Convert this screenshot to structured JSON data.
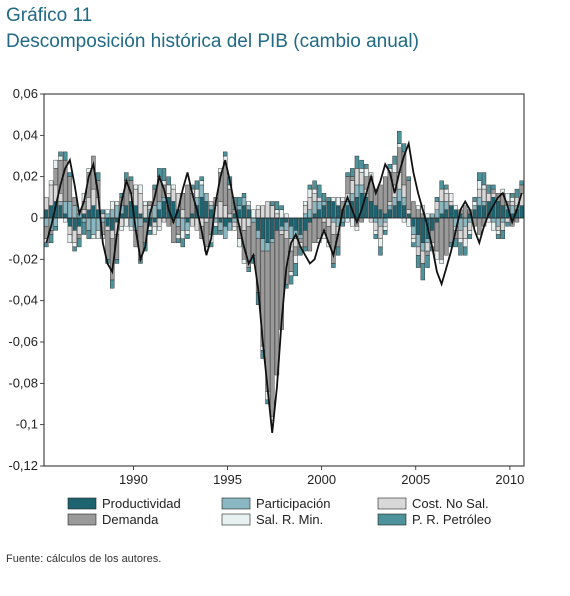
{
  "header": {
    "label": "Gráfico 11",
    "title": "Descomposición histórica del PIB (cambio anual)"
  },
  "source": "Fuente: cálculos de los autores.",
  "chart_data": {
    "type": "bar",
    "stacked": true,
    "x_tick_labels": [
      "1990",
      "1995",
      "2000",
      "2005",
      "2010"
    ],
    "y_tick_labels": [
      "0,06",
      "0,04",
      "0,02",
      "0",
      "-0,02",
      "-0,04",
      "-0,06",
      "-0,08",
      "-0,1",
      "-0,12"
    ],
    "ylim": [
      -0.12,
      0.06
    ],
    "xlim": [
      1985.25,
      2010.75
    ],
    "grid": false,
    "legend_position": "bottom",
    "series": [
      {
        "name": "Productividad",
        "color": "#1e6470",
        "values": [
          0.004,
          0.006,
          0.008,
          0.006,
          0.002,
          -0.004,
          -0.006,
          -0.004,
          0.002,
          0.004,
          0.006,
          0.004,
          0.0,
          -0.004,
          -0.006,
          -0.002,
          0.002,
          0.006,
          0.008,
          0.006,
          0.002,
          -0.002,
          -0.004,
          -0.002,
          0.004,
          0.008,
          0.01,
          0.008,
          0.004,
          0.0,
          -0.002,
          0.002,
          0.006,
          0.01,
          0.008,
          0.004,
          0.0,
          -0.002,
          -0.004,
          -0.002,
          0.002,
          0.004,
          0.006,
          0.004,
          0.0,
          -0.006,
          -0.01,
          -0.012,
          -0.01,
          -0.006,
          -0.004,
          -0.002,
          -0.004,
          -0.006,
          -0.008,
          -0.006,
          -0.002,
          0.002,
          0.004,
          0.006,
          0.008,
          0.008,
          0.006,
          0.004,
          0.006,
          0.008,
          0.01,
          0.012,
          0.01,
          0.008,
          0.006,
          0.004,
          0.002,
          0.004,
          0.006,
          0.008,
          0.006,
          0.002,
          -0.004,
          -0.008,
          -0.012,
          -0.01,
          -0.006,
          -0.002,
          0.002,
          0.004,
          0.006,
          0.004,
          0.002,
          0.0,
          0.002,
          0.004,
          0.006,
          0.006,
          0.008,
          0.01,
          0.008,
          0.006,
          0.004,
          0.002,
          0.004,
          0.006
        ]
      },
      {
        "name": "Participación",
        "color": "#8ab8c2",
        "values": [
          -0.004,
          -0.006,
          -0.004,
          0.002,
          0.006,
          0.008,
          0.006,
          0.002,
          -0.002,
          -0.006,
          -0.008,
          -0.006,
          -0.002,
          0.002,
          0.004,
          0.006,
          0.004,
          0.0,
          -0.004,
          -0.006,
          -0.004,
          0.0,
          0.004,
          0.006,
          0.004,
          0.002,
          0.0,
          -0.002,
          -0.004,
          -0.006,
          -0.004,
          0.0,
          0.004,
          0.006,
          0.004,
          0.002,
          -0.002,
          -0.004,
          -0.006,
          -0.004,
          -0.002,
          0.002,
          0.004,
          0.002,
          -0.002,
          -0.004,
          -0.006,
          -0.004,
          -0.002,
          0.0,
          -0.002,
          -0.004,
          -0.006,
          -0.004,
          -0.002,
          0.002,
          0.004,
          0.006,
          0.004,
          0.002,
          0.0,
          -0.002,
          -0.004,
          -0.002,
          0.002,
          0.004,
          0.006,
          0.004,
          0.002,
          0.0,
          -0.002,
          -0.004,
          -0.002,
          0.002,
          0.004,
          0.006,
          0.004,
          0.0,
          -0.004,
          -0.006,
          -0.004,
          -0.002,
          0.002,
          0.004,
          0.006,
          0.004,
          0.0,
          -0.004,
          -0.006,
          -0.004,
          -0.002,
          0.002,
          0.004,
          0.002,
          0.0,
          -0.002,
          -0.004,
          -0.002,
          0.002,
          0.004,
          0.002,
          0.0
        ]
      },
      {
        "name": "Cost. No Sal.",
        "color": "#d8d8d8",
        "values": [
          0.006,
          0.01,
          0.008,
          0.004,
          0.0,
          -0.004,
          -0.006,
          -0.004,
          0.002,
          0.006,
          0.008,
          0.006,
          0.002,
          -0.002,
          -0.004,
          -0.006,
          -0.004,
          0.0,
          0.004,
          0.008,
          0.01,
          0.006,
          0.002,
          -0.002,
          -0.004,
          -0.002,
          0.002,
          0.006,
          0.008,
          0.004,
          0.0,
          -0.004,
          -0.006,
          -0.004,
          -0.002,
          0.002,
          0.006,
          0.008,
          0.006,
          0.002,
          -0.002,
          -0.004,
          -0.006,
          -0.004,
          0.0,
          0.004,
          0.006,
          0.008,
          0.006,
          0.002,
          -0.002,
          -0.004,
          -0.006,
          -0.004,
          0.0,
          0.004,
          0.006,
          0.004,
          0.002,
          -0.002,
          -0.004,
          -0.006,
          -0.004,
          0.0,
          0.004,
          0.006,
          0.008,
          0.006,
          0.002,
          -0.002,
          -0.004,
          -0.006,
          -0.002,
          0.002,
          0.006,
          0.008,
          0.006,
          0.002,
          -0.002,
          -0.004,
          -0.006,
          -0.004,
          0.0,
          0.004,
          0.006,
          0.004,
          0.002,
          -0.002,
          -0.004,
          -0.006,
          -0.004,
          0.0,
          0.004,
          0.006,
          0.004,
          0.002,
          -0.002,
          -0.004,
          -0.002,
          0.002,
          0.004,
          0.006
        ]
      },
      {
        "name": "Demanda",
        "color": "#9a9a9a",
        "values": [
          -0.006,
          -0.002,
          0.008,
          0.016,
          0.02,
          0.012,
          0.004,
          -0.002,
          0.004,
          0.012,
          0.016,
          0.008,
          -0.006,
          -0.014,
          -0.02,
          -0.012,
          0.004,
          0.012,
          0.006,
          -0.008,
          -0.016,
          -0.01,
          0.002,
          0.008,
          0.012,
          0.006,
          -0.004,
          -0.01,
          -0.004,
          0.008,
          0.016,
          0.01,
          0.0,
          -0.006,
          -0.012,
          -0.008,
          0.004,
          0.014,
          0.02,
          0.012,
          0.002,
          -0.006,
          -0.014,
          -0.02,
          -0.016,
          -0.026,
          -0.046,
          -0.068,
          -0.084,
          -0.07,
          -0.046,
          -0.022,
          -0.01,
          -0.004,
          -0.002,
          -0.008,
          -0.014,
          -0.012,
          -0.01,
          -0.004,
          -0.008,
          -0.014,
          -0.006,
          0.004,
          0.008,
          0.002,
          -0.004,
          -0.002,
          0.006,
          0.012,
          0.008,
          0.012,
          0.018,
          0.014,
          0.006,
          0.012,
          0.016,
          0.014,
          0.008,
          0.004,
          0.002,
          -0.002,
          -0.006,
          -0.014,
          -0.02,
          -0.018,
          -0.012,
          -0.004,
          0.002,
          0.006,
          0.002,
          -0.004,
          -0.008,
          -0.004,
          0.0,
          0.002,
          0.004,
          0.006,
          0.002,
          -0.004,
          -0.002,
          0.004
        ]
      },
      {
        "name": "Sal. R. Min.",
        "color": "#e8f1f2",
        "values": [
          -0.002,
          0.002,
          0.004,
          0.002,
          -0.002,
          -0.004,
          -0.002,
          0.002,
          0.004,
          0.002,
          -0.002,
          -0.004,
          -0.002,
          0.002,
          0.004,
          0.002,
          -0.002,
          -0.004,
          -0.002,
          0.002,
          0.004,
          0.002,
          -0.002,
          -0.004,
          -0.002,
          0.002,
          0.004,
          0.002,
          -0.002,
          -0.004,
          -0.002,
          0.002,
          0.004,
          0.002,
          -0.002,
          -0.004,
          -0.002,
          0.002,
          0.004,
          0.002,
          -0.002,
          -0.004,
          -0.002,
          0.002,
          0.004,
          0.002,
          -0.002,
          -0.004,
          -0.002,
          0.002,
          0.004,
          0.002,
          -0.002,
          -0.004,
          -0.002,
          0.002,
          0.004,
          0.002,
          -0.002,
          -0.004,
          -0.002,
          0.002,
          0.004,
          0.002,
          -0.002,
          -0.004,
          -0.002,
          0.002,
          0.004,
          0.002,
          -0.002,
          -0.004,
          -0.002,
          0.002,
          0.004,
          0.002,
          -0.002,
          -0.004,
          -0.002,
          0.002,
          0.004,
          0.002,
          -0.002,
          -0.004,
          -0.002,
          0.002,
          0.004,
          0.002,
          -0.002,
          -0.004,
          -0.002,
          0.002,
          0.004,
          0.002,
          -0.002,
          -0.004,
          -0.002,
          0.002,
          0.004,
          0.002
        ]
      },
      {
        "name": "P. R. Petróleo",
        "color": "#4e929c",
        "values": [
          -0.002,
          -0.004,
          -0.002,
          0.002,
          0.004,
          0.002,
          -0.002,
          -0.004,
          -0.006,
          -0.004,
          0.0,
          0.004,
          0.002,
          -0.002,
          -0.004,
          -0.002,
          0.002,
          0.004,
          0.002,
          0.0,
          -0.002,
          -0.004,
          -0.002,
          0.002,
          0.004,
          0.006,
          0.004,
          0.0,
          -0.002,
          -0.004,
          -0.002,
          0.002,
          0.004,
          0.002,
          0.0,
          -0.002,
          -0.004,
          -0.002,
          0.002,
          0.004,
          0.006,
          0.004,
          0.002,
          -0.002,
          -0.004,
          -0.006,
          -0.004,
          -0.002,
          0.002,
          0.004,
          0.002,
          -0.002,
          -0.004,
          -0.006,
          -0.004,
          -0.002,
          0.002,
          0.004,
          0.006,
          0.004,
          0.002,
          -0.002,
          -0.004,
          -0.002,
          0.002,
          0.004,
          0.006,
          0.004,
          0.002,
          0.0,
          -0.002,
          -0.004,
          -0.002,
          0.002,
          0.004,
          0.006,
          0.004,
          0.002,
          -0.002,
          -0.006,
          -0.008,
          -0.006,
          -0.002,
          0.002,
          0.004,
          0.002,
          -0.002,
          -0.004,
          -0.006,
          -0.004,
          -0.002,
          0.002,
          0.004,
          0.006,
          0.004,
          0.002,
          -0.002,
          -0.004,
          -0.002,
          0.002,
          0.004,
          0.002
        ]
      }
    ],
    "line": {
      "color": "#111111",
      "values": [
        -0.012,
        -0.004,
        0.006,
        0.016,
        0.024,
        0.028,
        0.016,
        0.002,
        0.008,
        0.02,
        0.026,
        0.012,
        -0.012,
        -0.022,
        -0.026,
        -0.008,
        0.008,
        0.018,
        0.012,
        -0.006,
        -0.02,
        -0.014,
        0.002,
        0.01,
        0.02,
        0.014,
        0.004,
        -0.002,
        0.004,
        0.014,
        0.022,
        0.012,
        0.004,
        -0.006,
        -0.018,
        -0.01,
        0.008,
        0.02,
        0.028,
        0.018,
        0.006,
        -0.004,
        -0.014,
        -0.022,
        -0.018,
        -0.034,
        -0.06,
        -0.082,
        -0.104,
        -0.082,
        -0.05,
        -0.024,
        -0.012,
        -0.008,
        -0.014,
        -0.018,
        -0.022,
        -0.02,
        -0.012,
        -0.006,
        -0.012,
        -0.018,
        -0.008,
        0.004,
        0.01,
        0.004,
        -0.002,
        0.004,
        0.012,
        0.02,
        0.012,
        0.018,
        0.026,
        0.022,
        0.012,
        0.022,
        0.03,
        0.036,
        0.022,
        0.012,
        0.004,
        -0.004,
        -0.014,
        -0.026,
        -0.032,
        -0.024,
        -0.016,
        -0.006,
        0.004,
        0.008,
        0.004,
        -0.006,
        -0.012,
        -0.004,
        0.002,
        0.006,
        0.01,
        0.012,
        0.006,
        -0.002,
        0.004,
        0.012
      ]
    }
  }
}
